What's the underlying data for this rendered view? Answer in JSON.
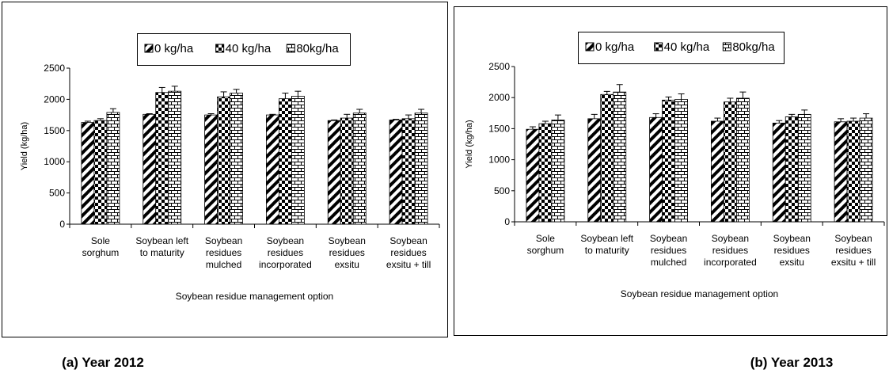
{
  "chart_data": [
    {
      "type": "bar",
      "title": "(a)  Year 2012",
      "ylabel": "Yield (kg/ha)",
      "xlabel": "Soybean residue management option",
      "categories": [
        "Sole\nsorghum",
        "Soybean left\nto maturity",
        "Soybean\nresidues\nmulched",
        "Soybean\nresidues\nincorporated",
        "Soybean\nresidues\nexsitu",
        "Soybean\nresidues\nexsitu + till"
      ],
      "series": [
        {
          "name": "0 kg/ha",
          "pattern": "diagonal",
          "values": [
            1630,
            1760,
            1750,
            1750,
            1660,
            1670
          ],
          "errors": [
            20,
            10,
            20,
            10,
            10,
            10
          ]
        },
        {
          "name": "40 kg/ha",
          "pattern": "checker",
          "values": [
            1660,
            2110,
            2040,
            2010,
            1700,
            1690
          ],
          "errors": [
            30,
            80,
            80,
            90,
            60,
            60
          ]
        },
        {
          "name": "80kg/ha",
          "pattern": "brick",
          "values": [
            1790,
            2130,
            2100,
            2050,
            1780,
            1780
          ],
          "errors": [
            60,
            80,
            60,
            80,
            60,
            60
          ]
        }
      ],
      "ylim": [
        0,
        2500
      ],
      "yticks": [
        0,
        500,
        1000,
        1500,
        2000,
        2500
      ],
      "grid": false
    },
    {
      "type": "bar",
      "title": "(b) Year 2013",
      "ylabel": "Yield (kg/ha)",
      "xlabel": "Soybean residue management option",
      "categories": [
        "Sole\nsorghum",
        "Soybean left\nto maturity",
        "Soybean\nresidues\nmulched",
        "Soybean\nresidues\nincorporated",
        "Soybean\nresidues\nexsitu",
        "Soybean\nresidues\nexsitu + till"
      ],
      "series": [
        {
          "name": "0 kg/ha",
          "pattern": "diagonal",
          "values": [
            1490,
            1660,
            1680,
            1620,
            1590,
            1610
          ],
          "errors": [
            40,
            70,
            60,
            50,
            40,
            50
          ]
        },
        {
          "name": "40 kg/ha",
          "pattern": "checker",
          "values": [
            1580,
            2050,
            1960,
            1930,
            1690,
            1620
          ],
          "errors": [
            40,
            50,
            50,
            60,
            40,
            50
          ]
        },
        {
          "name": "80kg/ha",
          "pattern": "brick",
          "values": [
            1640,
            2090,
            1970,
            1990,
            1730,
            1670
          ],
          "errors": [
            80,
            120,
            90,
            100,
            70,
            70
          ]
        }
      ],
      "ylim": [
        0,
        2500
      ],
      "yticks": [
        0,
        500,
        1000,
        1500,
        2000,
        2500
      ],
      "grid": false
    }
  ]
}
